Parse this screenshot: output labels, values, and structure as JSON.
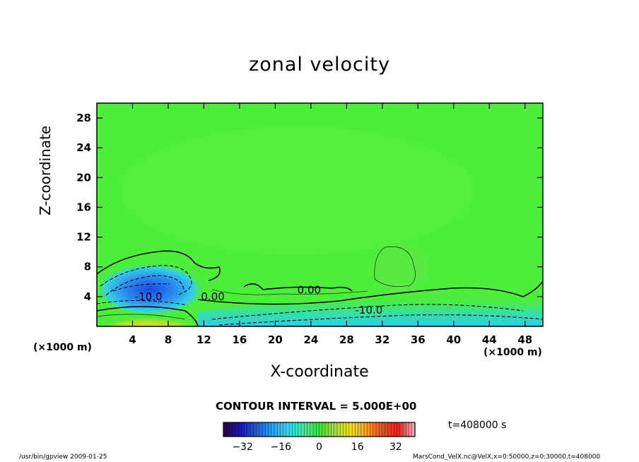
{
  "chart_data": {
    "type": "heatmap",
    "title": "zonal velocity",
    "xlabel": "X-coordinate",
    "ylabel": "Z-coordinate",
    "x_unit": "(×1000 m)",
    "y_unit": "(×1000 m)",
    "xlim": [
      0,
      50
    ],
    "ylim": [
      0,
      30
    ],
    "x_ticks": [
      4,
      8,
      12,
      16,
      20,
      24,
      28,
      32,
      36,
      40,
      44,
      48
    ],
    "y_ticks": [
      4,
      8,
      12,
      16,
      20,
      24,
      28
    ],
    "contour_labels": [
      {
        "text": "-10.0",
        "x": 5.8,
        "y": 3.5
      },
      {
        "text": "0.00",
        "x": 13.0,
        "y": 3.5
      },
      {
        "text": "0.00",
        "x": 23.8,
        "y": 4.4
      },
      {
        "text": "-10.0",
        "x": 30.5,
        "y": 1.7
      }
    ],
    "contour_interval": "CONTOUR INTERVAL = 5.000E+00",
    "colorbar": {
      "min": -40,
      "max": 40,
      "ticks": [
        -32,
        -16,
        0,
        16,
        32
      ],
      "colors": [
        "#2a0060",
        "#1a1aa8",
        "#1e5ae0",
        "#2aa0f0",
        "#30d8f0",
        "#40f0a0",
        "#40e040",
        "#a8e030",
        "#f0e020",
        "#f8a020",
        "#f05020",
        "#e82020",
        "#f8a0b0"
      ]
    },
    "time_label": "t=408000  s",
    "colors": {
      "background_green": "#4cee3a",
      "negative_strong": "#1a50e0",
      "negative_mid": "#2ac8f0",
      "positive_strong": "#f05010"
    }
  },
  "footer": {
    "left": "/usr/bin/gpview   2009-01-25",
    "right": "MarsCond_VelX.nc@VelX,x=0:50000,z=0:30000,t=408000"
  }
}
